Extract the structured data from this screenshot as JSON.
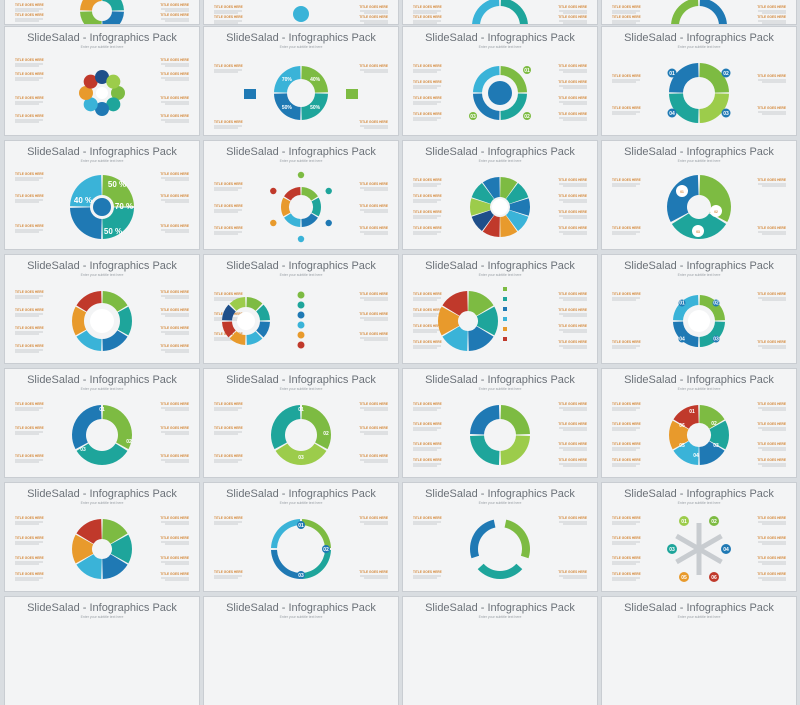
{
  "slide_title": "SlideSalad - Infographics Pack",
  "slide_subtitle": "Enter your subtitle text here",
  "item_label": "TITLE GOES HERE",
  "step_numbers": [
    "01",
    "02",
    "03",
    "04",
    "05",
    "06"
  ],
  "percent_labels": [
    "50 %",
    "70 %",
    "50 %",
    "40 %"
  ],
  "donut_percents": [
    "40%",
    "50%",
    "50%",
    "70%"
  ],
  "colors": {
    "green": "#7dbb42",
    "lightgreen": "#9ccc4b",
    "teal": "#1ea59b",
    "blue": "#1f79b4",
    "lightblue": "#3ab3d8",
    "orange": "#e89a2c",
    "red": "#c0392b",
    "navy": "#1f4f8a",
    "background": "#d9dde1",
    "slide": "#f3f4f5"
  }
}
